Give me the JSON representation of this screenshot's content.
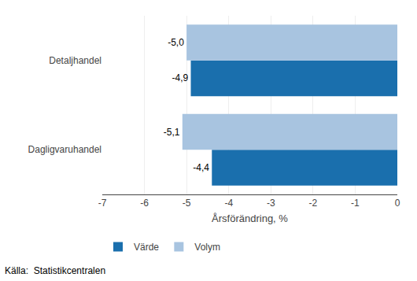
{
  "chart_data": {
    "type": "bar",
    "orientation": "horizontal",
    "categories": [
      "Dagligvaruhandel",
      "Detaljhandel"
    ],
    "series": [
      {
        "name": "Värde",
        "color": "#1a6fad",
        "values": [
          -4.4,
          -4.9
        ],
        "value_labels": [
          "-4,4",
          "-4,9"
        ]
      },
      {
        "name": "Volym",
        "color": "#a8c4e0",
        "values": [
          -5.1,
          -5.0
        ],
        "value_labels": [
          "-5,1",
          "-5,0"
        ]
      }
    ],
    "xlabel": "Årsförändring, %",
    "xlim": [
      -7,
      0
    ],
    "xticks": [
      -7,
      -6,
      -5,
      -4,
      -3,
      -2,
      -1,
      0
    ],
    "grid": true,
    "legend": "lower left",
    "data_labels": true,
    "annotation": "Källa:  Statistikcentralen"
  }
}
